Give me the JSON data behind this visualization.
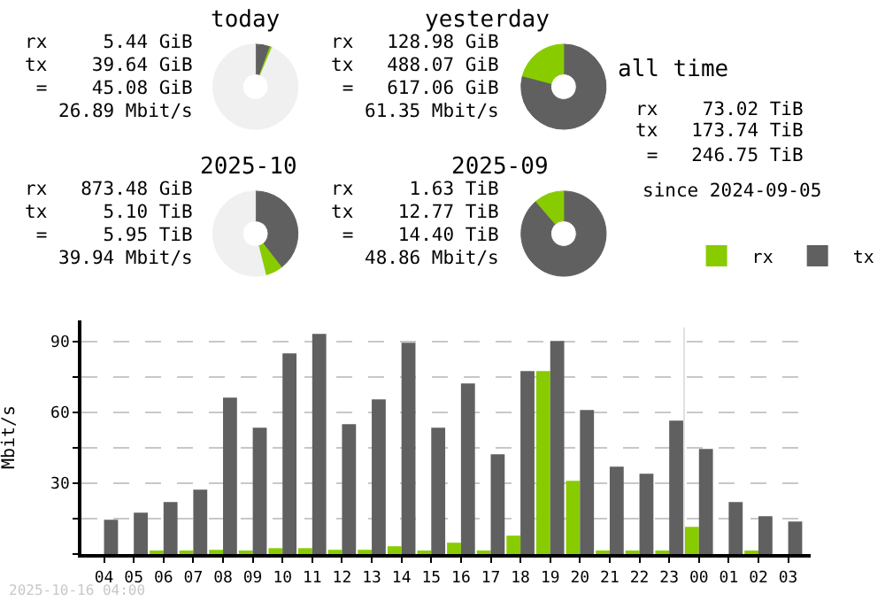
{
  "chart_data": [
    {
      "type": "donut",
      "title": "today",
      "categories": [
        null,
        null,
        null
      ],
      "values": [
        5.6,
        0.8,
        93.6
      ],
      "colors": [
        "#606060",
        "#88cc00",
        "#f0f0f0"
      ],
      "annotations": [
        "rx     5.44 GiB",
        "tx    39.64 GiB",
        " =    45.08 GiB",
        "26.89 Mbit/s"
      ]
    },
    {
      "type": "donut",
      "title": "yesterday",
      "categories": [
        null,
        null
      ],
      "values": [
        79.1,
        20.9
      ],
      "colors": [
        "#606060",
        "#88cc00"
      ],
      "annotations": [
        "rx   128.98 GiB",
        "tx   488.07 GiB",
        " =   617.06 GiB",
        "61.35 Mbit/s"
      ]
    },
    {
      "type": "donut",
      "title": "2025-10",
      "categories": [
        null,
        null,
        null
      ],
      "values": [
        39.5,
        6.6,
        53.9
      ],
      "colors": [
        "#606060",
        "#88cc00",
        "#f0f0f0"
      ],
      "annotations": [
        "rx   873.48 GiB",
        "tx     5.10 TiB",
        " =     5.95 TiB",
        "39.94 Mbit/s"
      ]
    },
    {
      "type": "donut",
      "title": "2025-09",
      "categories": [
        null,
        null
      ],
      "values": [
        88.7,
        11.3
      ],
      "colors": [
        "#606060",
        "#88cc00"
      ],
      "annotations": [
        "rx     1.63 TiB",
        "tx    12.77 TiB",
        " =    14.40 TiB",
        "48.86 Mbit/s"
      ]
    },
    {
      "type": "other",
      "title": "all time",
      "annotations": [
        "rx    73.02 TiB",
        "tx   173.74 TiB",
        " =   246.75 TiB",
        "since 2024-09-05"
      ]
    },
    {
      "type": "bar",
      "ylabel": "Mbit/s",
      "categories": [
        "04",
        "05",
        "06",
        "07",
        "08",
        "09",
        "10",
        "11",
        "12",
        "13",
        "14",
        "15",
        "16",
        "17",
        "18",
        "19",
        "20",
        "21",
        "22",
        "23",
        "00",
        "01",
        "02",
        "03"
      ],
      "series": [
        {
          "name": "rx",
          "color": "#88cc00",
          "values": [
            0,
            0,
            1,
            1,
            1.8,
            1,
            2.5,
            2.5,
            1.8,
            1.8,
            3.3,
            1,
            4.8,
            1,
            7.8,
            77.5,
            31,
            1,
            1,
            1,
            11.5,
            0,
            1,
            0
          ]
        },
        {
          "name": "tx",
          "color": "#606060",
          "values": [
            14.5,
            17.5,
            22,
            27.3,
            66.3,
            53.5,
            85,
            93.3,
            55,
            65.5,
            89.5,
            53.5,
            72.3,
            42.3,
            77.5,
            90.3,
            61,
            37,
            34,
            56.5,
            44.5,
            22,
            16,
            13.8
          ]
        }
      ],
      "ylim": [
        0,
        99
      ],
      "yticks": [
        {
          "value": 0,
          "label": null
        },
        {
          "value": 15,
          "label": null
        },
        30,
        {
          "value": 45,
          "label": null
        },
        60,
        {
          "value": 75,
          "label": null
        },
        90
      ],
      "grid": "y",
      "legend": "top right",
      "ref_lines": [
        {
          "axis": "x",
          "value": "00",
          "color": "#e0e0e0",
          "line_style": "solid"
        }
      ],
      "annotations": [
        "2025-10-16 04:00"
      ]
    }
  ]
}
